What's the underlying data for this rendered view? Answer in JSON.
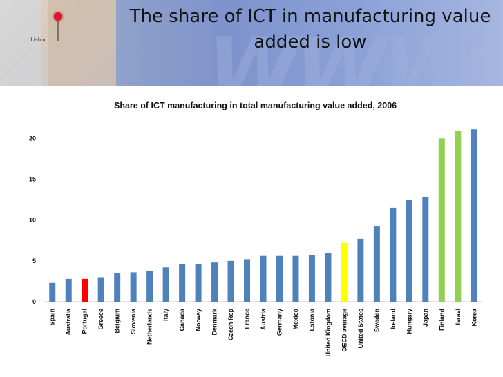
{
  "slide": {
    "title_line1": "The share of ICT in manufacturing value",
    "title_line2": "added is low"
  },
  "banner": {
    "map_label": "Lisbon",
    "watermark": "WWW"
  },
  "colors": {
    "default": "#4f81bd",
    "portugal": "#ff0000",
    "oecd": "#ffff00",
    "nordic_israel": "#92d050"
  },
  "chart_data": {
    "type": "bar",
    "title": "Share of ICT manufacturing in total manufacturing value added, 2006",
    "xlabel": "",
    "ylabel": "",
    "ylim": [
      0,
      21.5
    ],
    "yticks": [
      0,
      5,
      10,
      15,
      20
    ],
    "categories": [
      "Spain",
      "Australia",
      "Portugal",
      "Greece",
      "Belgium",
      "Slovenia",
      "Netherlands",
      "Italy",
      "Canada",
      "Norway",
      "Denmark",
      "Czech Rep",
      "France",
      "Austria",
      "Germany",
      "Mexico",
      "Estonia",
      "United Kingdom",
      "OECD average",
      "United States",
      "Sweden",
      "Ireland",
      "Hungary",
      "Japan",
      "Finland",
      "Israel",
      "Korea"
    ],
    "values": [
      2.3,
      2.8,
      2.8,
      3.0,
      3.5,
      3.6,
      3.8,
      4.2,
      4.6,
      4.6,
      4.8,
      5.0,
      5.2,
      5.6,
      5.6,
      5.6,
      5.7,
      6.0,
      7.2,
      7.7,
      9.2,
      11.5,
      12.5,
      12.8,
      20.0,
      20.9,
      21.1
    ],
    "bar_colors": [
      "default",
      "default",
      "portugal",
      "default",
      "default",
      "default",
      "default",
      "default",
      "default",
      "default",
      "default",
      "default",
      "default",
      "default",
      "default",
      "default",
      "default",
      "default",
      "oecd",
      "default",
      "default",
      "default",
      "default",
      "default",
      "nordic_israel",
      "nordic_israel",
      "default"
    ]
  }
}
